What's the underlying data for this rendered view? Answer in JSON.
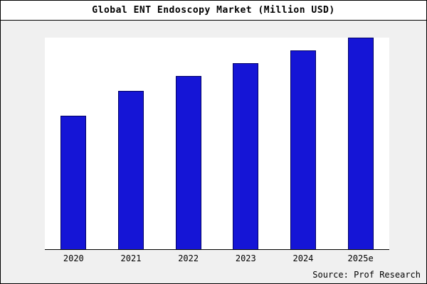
{
  "chart_data": {
    "type": "bar",
    "title": "Global ENT Endoscopy Market (Million USD)",
    "categories": [
      "2020",
      "2021",
      "2022",
      "2023",
      "2024",
      "2025e"
    ],
    "values": [
      63,
      75,
      82,
      88,
      94,
      100
    ],
    "xlabel": "",
    "ylabel": "",
    "ylim": [
      0,
      100
    ],
    "grid": false,
    "legend": false,
    "bar_color": "#1515d6",
    "bar_edge_color": "#000066",
    "plot_background": "#ffffff",
    "outer_background": "#f0f0f0"
  },
  "source": "Source: Prof Research"
}
